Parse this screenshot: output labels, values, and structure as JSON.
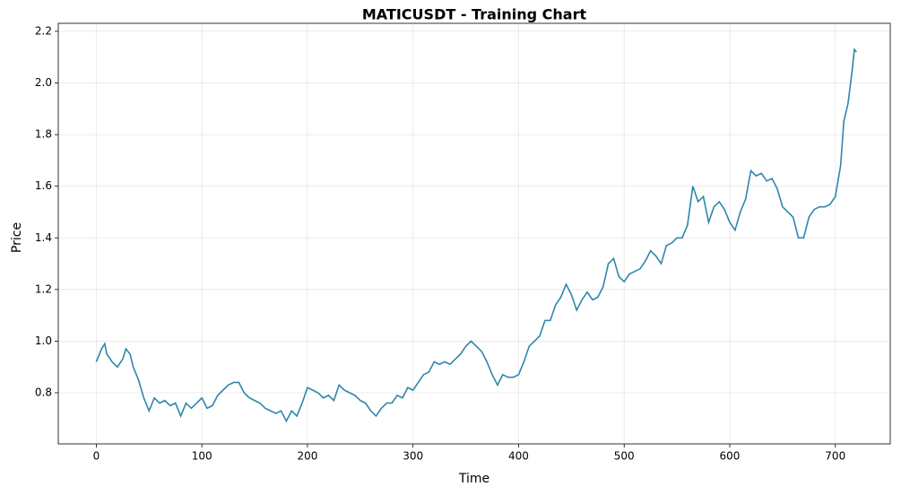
{
  "chart_data": {
    "type": "line",
    "title": "MATICUSDT - Training Chart",
    "x_label": "Time",
    "y_label": "Price",
    "xlim": [
      -36,
      752
    ],
    "ylim": [
      0.602,
      2.231
    ],
    "xticks": [
      0,
      100,
      200,
      300,
      400,
      500,
      600,
      700
    ],
    "yticks": [
      0.8,
      {
        "value": 1,
        "label": "1.0"
      },
      1.2,
      1.4,
      1.6,
      1.8,
      {
        "value": 2,
        "label": "2.0"
      },
      2.2
    ],
    "grid": true,
    "series": [
      {
        "color": "#2e86ab",
        "x": [
          0,
          5,
          8,
          10,
          15,
          20,
          25,
          28,
          32,
          35,
          40,
          45,
          50,
          55,
          60,
          65,
          70,
          75,
          80,
          85,
          90,
          95,
          100,
          105,
          110,
          115,
          120,
          125,
          130,
          135,
          140,
          145,
          150,
          155,
          160,
          165,
          170,
          175,
          180,
          185,
          190,
          195,
          200,
          205,
          210,
          215,
          220,
          225,
          230,
          235,
          240,
          245,
          250,
          255,
          260,
          265,
          270,
          275,
          280,
          285,
          290,
          295,
          300,
          305,
          310,
          315,
          320,
          325,
          330,
          335,
          340,
          345,
          350,
          355,
          360,
          365,
          370,
          375,
          380,
          385,
          390,
          395,
          400,
          405,
          410,
          415,
          420,
          425,
          430,
          435,
          440,
          445,
          450,
          455,
          460,
          465,
          470,
          475,
          480,
          485,
          490,
          495,
          500,
          505,
          510,
          515,
          520,
          525,
          530,
          535,
          540,
          545,
          550,
          555,
          560,
          565,
          570,
          575,
          580,
          585,
          590,
          595,
          600,
          605,
          610,
          615,
          620,
          625,
          630,
          635,
          640,
          645,
          650,
          655,
          660,
          665,
          670,
          675,
          680,
          685,
          690,
          695,
          700,
          705,
          708,
          712,
          716,
          718,
          720
        ],
        "values": [
          0.92,
          0.97,
          0.99,
          0.95,
          0.92,
          0.9,
          0.93,
          0.97,
          0.95,
          0.9,
          0.85,
          0.78,
          0.73,
          0.78,
          0.76,
          0.77,
          0.75,
          0.76,
          0.71,
          0.76,
          0.74,
          0.76,
          0.78,
          0.74,
          0.75,
          0.79,
          0.81,
          0.83,
          0.84,
          0.84,
          0.8,
          0.78,
          0.77,
          0.76,
          0.74,
          0.73,
          0.72,
          0.73,
          0.69,
          0.73,
          0.71,
          0.76,
          0.82,
          0.81,
          0.8,
          0.78,
          0.79,
          0.77,
          0.83,
          0.81,
          0.8,
          0.79,
          0.77,
          0.76,
          0.73,
          0.71,
          0.74,
          0.76,
          0.76,
          0.79,
          0.78,
          0.82,
          0.81,
          0.84,
          0.87,
          0.88,
          0.92,
          0.91,
          0.92,
          0.91,
          0.93,
          0.95,
          0.98,
          1.0,
          0.98,
          0.96,
          0.92,
          0.87,
          0.83,
          0.87,
          0.86,
          0.86,
          0.87,
          0.92,
          0.98,
          1.0,
          1.02,
          1.08,
          1.08,
          1.14,
          1.17,
          1.22,
          1.18,
          1.12,
          1.16,
          1.19,
          1.16,
          1.17,
          1.21,
          1.3,
          1.32,
          1.25,
          1.23,
          1.26,
          1.27,
          1.28,
          1.31,
          1.35,
          1.33,
          1.3,
          1.37,
          1.38,
          1.4,
          1.4,
          1.45,
          1.6,
          1.54,
          1.56,
          1.46,
          1.52,
          1.54,
          1.51,
          1.46,
          1.43,
          1.5,
          1.55,
          1.66,
          1.64,
          1.65,
          1.62,
          1.63,
          1.59,
          1.52,
          1.5,
          1.48,
          1.4,
          1.4,
          1.48,
          1.51,
          1.52,
          1.52,
          1.53,
          1.56,
          1.68,
          1.85,
          1.92,
          2.05,
          2.13,
          2.12
        ]
      }
    ]
  }
}
